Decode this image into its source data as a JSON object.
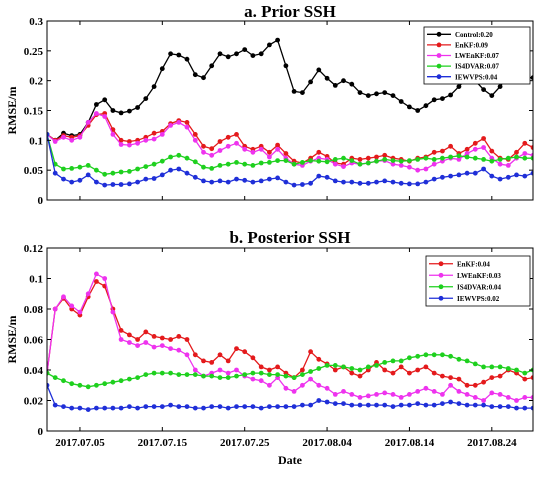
{
  "chart_data": [
    {
      "type": "line",
      "title": "a. Prior SSH",
      "xlabel": "",
      "ylabel": "RMSE/m",
      "ylim": [
        0,
        0.3
      ],
      "yticks": [
        0,
        0.05,
        0.1,
        0.15,
        0.2,
        0.25,
        0.3
      ],
      "ytick_labels": [
        "0",
        "0.05",
        "0.1",
        "0.15",
        "0.2",
        "0.25",
        "0.3"
      ],
      "xlim": [
        "2017-07-01",
        "2017-08-29"
      ],
      "xticks": [
        "2017-07-05",
        "2017-07-15",
        "2017-07-25",
        "2017-08-04",
        "2017-08-14",
        "2017-08-24"
      ],
      "xtick_labels": [],
      "grid": false,
      "legend_position": "top-right",
      "x": [
        "2017-07-01",
        "2017-07-02",
        "2017-07-03",
        "2017-07-04",
        "2017-07-05",
        "2017-07-06",
        "2017-07-07",
        "2017-07-08",
        "2017-07-09",
        "2017-07-10",
        "2017-07-11",
        "2017-07-12",
        "2017-07-13",
        "2017-07-14",
        "2017-07-15",
        "2017-07-16",
        "2017-07-17",
        "2017-07-18",
        "2017-07-19",
        "2017-07-20",
        "2017-07-21",
        "2017-07-22",
        "2017-07-23",
        "2017-07-24",
        "2017-07-25",
        "2017-07-26",
        "2017-07-27",
        "2017-07-28",
        "2017-07-29",
        "2017-07-30",
        "2017-07-31",
        "2017-08-01",
        "2017-08-02",
        "2017-08-03",
        "2017-08-04",
        "2017-08-05",
        "2017-08-06",
        "2017-08-07",
        "2017-08-08",
        "2017-08-09",
        "2017-08-10",
        "2017-08-11",
        "2017-08-12",
        "2017-08-13",
        "2017-08-14",
        "2017-08-15",
        "2017-08-16",
        "2017-08-17",
        "2017-08-18",
        "2017-08-19",
        "2017-08-20",
        "2017-08-21",
        "2017-08-22",
        "2017-08-23",
        "2017-08-24",
        "2017-08-25",
        "2017-08-26",
        "2017-08-27",
        "2017-08-28",
        "2017-08-29"
      ],
      "series": [
        {
          "name": "Control:0.20",
          "color": "#000000",
          "values": [
            0.11,
            0.1,
            0.112,
            0.108,
            0.11,
            0.13,
            0.16,
            0.168,
            0.15,
            0.146,
            0.149,
            0.155,
            0.17,
            0.19,
            0.22,
            0.245,
            0.243,
            0.236,
            0.21,
            0.205,
            0.225,
            0.245,
            0.24,
            0.245,
            0.252,
            0.242,
            0.245,
            0.26,
            0.268,
            0.225,
            0.182,
            0.18,
            0.198,
            0.218,
            0.204,
            0.192,
            0.2,
            0.194,
            0.18,
            0.175,
            0.178,
            0.18,
            0.175,
            0.165,
            0.156,
            0.15,
            0.158,
            0.168,
            0.17,
            0.176,
            0.19,
            0.205,
            0.2,
            0.185,
            0.175,
            0.19,
            0.21,
            0.205,
            0.205,
            0.205
          ]
        },
        {
          "name": "EnKF:0.09",
          "color": "#e41a1c",
          "values": [
            0.11,
            0.1,
            0.108,
            0.105,
            0.108,
            0.125,
            0.143,
            0.145,
            0.118,
            0.1,
            0.098,
            0.1,
            0.105,
            0.112,
            0.115,
            0.128,
            0.133,
            0.13,
            0.11,
            0.09,
            0.086,
            0.098,
            0.105,
            0.11,
            0.09,
            0.085,
            0.09,
            0.08,
            0.092,
            0.078,
            0.065,
            0.062,
            0.07,
            0.08,
            0.073,
            0.062,
            0.06,
            0.07,
            0.068,
            0.07,
            0.072,
            0.075,
            0.07,
            0.068,
            0.065,
            0.07,
            0.072,
            0.08,
            0.082,
            0.09,
            0.078,
            0.085,
            0.095,
            0.103,
            0.082,
            0.07,
            0.068,
            0.08,
            0.095,
            0.088
          ]
        },
        {
          "name": "LWEnKF:0.07",
          "color": "#ee33ee",
          "values": [
            0.11,
            0.098,
            0.105,
            0.1,
            0.105,
            0.13,
            0.145,
            0.14,
            0.11,
            0.093,
            0.092,
            0.095,
            0.1,
            0.102,
            0.11,
            0.125,
            0.13,
            0.122,
            0.1,
            0.08,
            0.075,
            0.083,
            0.09,
            0.095,
            0.085,
            0.08,
            0.085,
            0.072,
            0.085,
            0.07,
            0.06,
            0.058,
            0.065,
            0.07,
            0.068,
            0.06,
            0.056,
            0.062,
            0.06,
            0.062,
            0.065,
            0.066,
            0.06,
            0.058,
            0.055,
            0.05,
            0.052,
            0.06,
            0.065,
            0.07,
            0.068,
            0.078,
            0.085,
            0.088,
            0.07,
            0.06,
            0.058,
            0.07,
            0.078,
            0.075
          ]
        },
        {
          "name": "IS4DVAR:0.07",
          "color": "#1ed01e",
          "values": [
            0.11,
            0.06,
            0.052,
            0.053,
            0.055,
            0.058,
            0.05,
            0.043,
            0.045,
            0.047,
            0.048,
            0.052,
            0.056,
            0.06,
            0.065,
            0.072,
            0.075,
            0.07,
            0.064,
            0.055,
            0.053,
            0.058,
            0.06,
            0.063,
            0.06,
            0.058,
            0.062,
            0.063,
            0.066,
            0.066,
            0.06,
            0.063,
            0.066,
            0.065,
            0.064,
            0.068,
            0.07,
            0.066,
            0.06,
            0.062,
            0.065,
            0.068,
            0.066,
            0.065,
            0.066,
            0.068,
            0.07,
            0.068,
            0.07,
            0.072,
            0.074,
            0.072,
            0.07,
            0.068,
            0.065,
            0.068,
            0.07,
            0.072,
            0.07,
            0.07
          ]
        },
        {
          "name": "IEWVPS:0.04",
          "color": "#1f2fd8",
          "values": [
            0.11,
            0.045,
            0.035,
            0.03,
            0.033,
            0.042,
            0.03,
            0.025,
            0.026,
            0.026,
            0.027,
            0.03,
            0.035,
            0.036,
            0.042,
            0.05,
            0.052,
            0.045,
            0.038,
            0.032,
            0.03,
            0.032,
            0.03,
            0.035,
            0.033,
            0.03,
            0.032,
            0.035,
            0.037,
            0.03,
            0.025,
            0.026,
            0.028,
            0.04,
            0.038,
            0.032,
            0.03,
            0.03,
            0.028,
            0.028,
            0.03,
            0.032,
            0.03,
            0.028,
            0.027,
            0.027,
            0.03,
            0.035,
            0.038,
            0.04,
            0.042,
            0.045,
            0.045,
            0.052,
            0.04,
            0.035,
            0.038,
            0.042,
            0.04,
            0.045
          ]
        }
      ]
    },
    {
      "type": "line",
      "title": "b. Posterior SSH",
      "xlabel": "Date",
      "ylabel": "RMSE/m",
      "ylim": [
        0,
        0.12
      ],
      "yticks": [
        0,
        0.02,
        0.04,
        0.06,
        0.08,
        0.1,
        0.12
      ],
      "ytick_labels": [
        "0",
        "0.02",
        "0.04",
        "0.06",
        "0.08",
        "0.1",
        "0.12"
      ],
      "xlim": [
        "2017-07-01",
        "2017-08-29"
      ],
      "xticks": [
        "2017-07-05",
        "2017-07-15",
        "2017-07-25",
        "2017-08-04",
        "2017-08-14",
        "2017-08-24"
      ],
      "xtick_labels": [
        "2017.07.05",
        "2017.07.15",
        "2017.07.25",
        "2017.08.04",
        "2017.08.14",
        "2017.08.24"
      ],
      "grid": false,
      "legend_position": "top-right",
      "x": [
        "2017-07-01",
        "2017-07-02",
        "2017-07-03",
        "2017-07-04",
        "2017-07-05",
        "2017-07-06",
        "2017-07-07",
        "2017-07-08",
        "2017-07-09",
        "2017-07-10",
        "2017-07-11",
        "2017-07-12",
        "2017-07-13",
        "2017-07-14",
        "2017-07-15",
        "2017-07-16",
        "2017-07-17",
        "2017-07-18",
        "2017-07-19",
        "2017-07-20",
        "2017-07-21",
        "2017-07-22",
        "2017-07-23",
        "2017-07-24",
        "2017-07-25",
        "2017-07-26",
        "2017-07-27",
        "2017-07-28",
        "2017-07-29",
        "2017-07-30",
        "2017-07-31",
        "2017-08-01",
        "2017-08-02",
        "2017-08-03",
        "2017-08-04",
        "2017-08-05",
        "2017-08-06",
        "2017-08-07",
        "2017-08-08",
        "2017-08-09",
        "2017-08-10",
        "2017-08-11",
        "2017-08-12",
        "2017-08-13",
        "2017-08-14",
        "2017-08-15",
        "2017-08-16",
        "2017-08-17",
        "2017-08-18",
        "2017-08-19",
        "2017-08-20",
        "2017-08-21",
        "2017-08-22",
        "2017-08-23",
        "2017-08-24",
        "2017-08-25",
        "2017-08-26",
        "2017-08-27",
        "2017-08-28",
        "2017-08-29"
      ],
      "series": [
        {
          "name": "EnKF:0.04",
          "color": "#e41a1c",
          "values": [
            0.038,
            0.08,
            0.087,
            0.08,
            0.076,
            0.088,
            0.098,
            0.095,
            0.08,
            0.066,
            0.063,
            0.06,
            0.065,
            0.062,
            0.061,
            0.06,
            0.062,
            0.06,
            0.05,
            0.046,
            0.045,
            0.05,
            0.046,
            0.054,
            0.052,
            0.048,
            0.042,
            0.04,
            0.042,
            0.038,
            0.035,
            0.04,
            0.052,
            0.047,
            0.044,
            0.04,
            0.042,
            0.038,
            0.036,
            0.04,
            0.045,
            0.04,
            0.038,
            0.042,
            0.038,
            0.04,
            0.042,
            0.038,
            0.036,
            0.035,
            0.034,
            0.03,
            0.03,
            0.032,
            0.035,
            0.036,
            0.04,
            0.038,
            0.034,
            0.035
          ]
        },
        {
          "name": "LWEnKF:0.03",
          "color": "#ee33ee",
          "values": [
            0.038,
            0.08,
            0.088,
            0.082,
            0.078,
            0.09,
            0.103,
            0.1,
            0.078,
            0.06,
            0.058,
            0.056,
            0.058,
            0.055,
            0.056,
            0.054,
            0.053,
            0.05,
            0.04,
            0.036,
            0.038,
            0.04,
            0.038,
            0.04,
            0.036,
            0.034,
            0.033,
            0.03,
            0.035,
            0.028,
            0.026,
            0.03,
            0.034,
            0.03,
            0.028,
            0.024,
            0.026,
            0.024,
            0.022,
            0.023,
            0.024,
            0.025,
            0.024,
            0.022,
            0.024,
            0.026,
            0.028,
            0.026,
            0.024,
            0.03,
            0.026,
            0.024,
            0.022,
            0.02,
            0.025,
            0.024,
            0.022,
            0.02,
            0.022,
            0.022
          ]
        },
        {
          "name": "IS4DVAR:0.04",
          "color": "#1ed01e",
          "values": [
            0.038,
            0.035,
            0.033,
            0.031,
            0.03,
            0.029,
            0.03,
            0.031,
            0.032,
            0.033,
            0.034,
            0.035,
            0.037,
            0.038,
            0.038,
            0.038,
            0.037,
            0.037,
            0.037,
            0.036,
            0.036,
            0.035,
            0.035,
            0.036,
            0.037,
            0.038,
            0.038,
            0.037,
            0.037,
            0.036,
            0.035,
            0.037,
            0.039,
            0.041,
            0.043,
            0.043,
            0.042,
            0.041,
            0.04,
            0.042,
            0.043,
            0.045,
            0.046,
            0.046,
            0.048,
            0.049,
            0.05,
            0.05,
            0.05,
            0.049,
            0.047,
            0.046,
            0.044,
            0.042,
            0.042,
            0.042,
            0.041,
            0.04,
            0.038,
            0.04
          ]
        },
        {
          "name": "IEWVPS:0.02",
          "color": "#1f2fd8",
          "values": [
            0.03,
            0.017,
            0.016,
            0.015,
            0.015,
            0.014,
            0.015,
            0.015,
            0.015,
            0.015,
            0.016,
            0.015,
            0.016,
            0.016,
            0.016,
            0.017,
            0.016,
            0.016,
            0.015,
            0.015,
            0.016,
            0.016,
            0.015,
            0.016,
            0.016,
            0.016,
            0.015,
            0.016,
            0.016,
            0.016,
            0.016,
            0.017,
            0.017,
            0.02,
            0.019,
            0.018,
            0.018,
            0.017,
            0.017,
            0.017,
            0.017,
            0.017,
            0.016,
            0.017,
            0.017,
            0.018,
            0.017,
            0.017,
            0.018,
            0.019,
            0.018,
            0.017,
            0.017,
            0.017,
            0.016,
            0.016,
            0.016,
            0.015,
            0.015,
            0.015
          ]
        }
      ]
    }
  ]
}
